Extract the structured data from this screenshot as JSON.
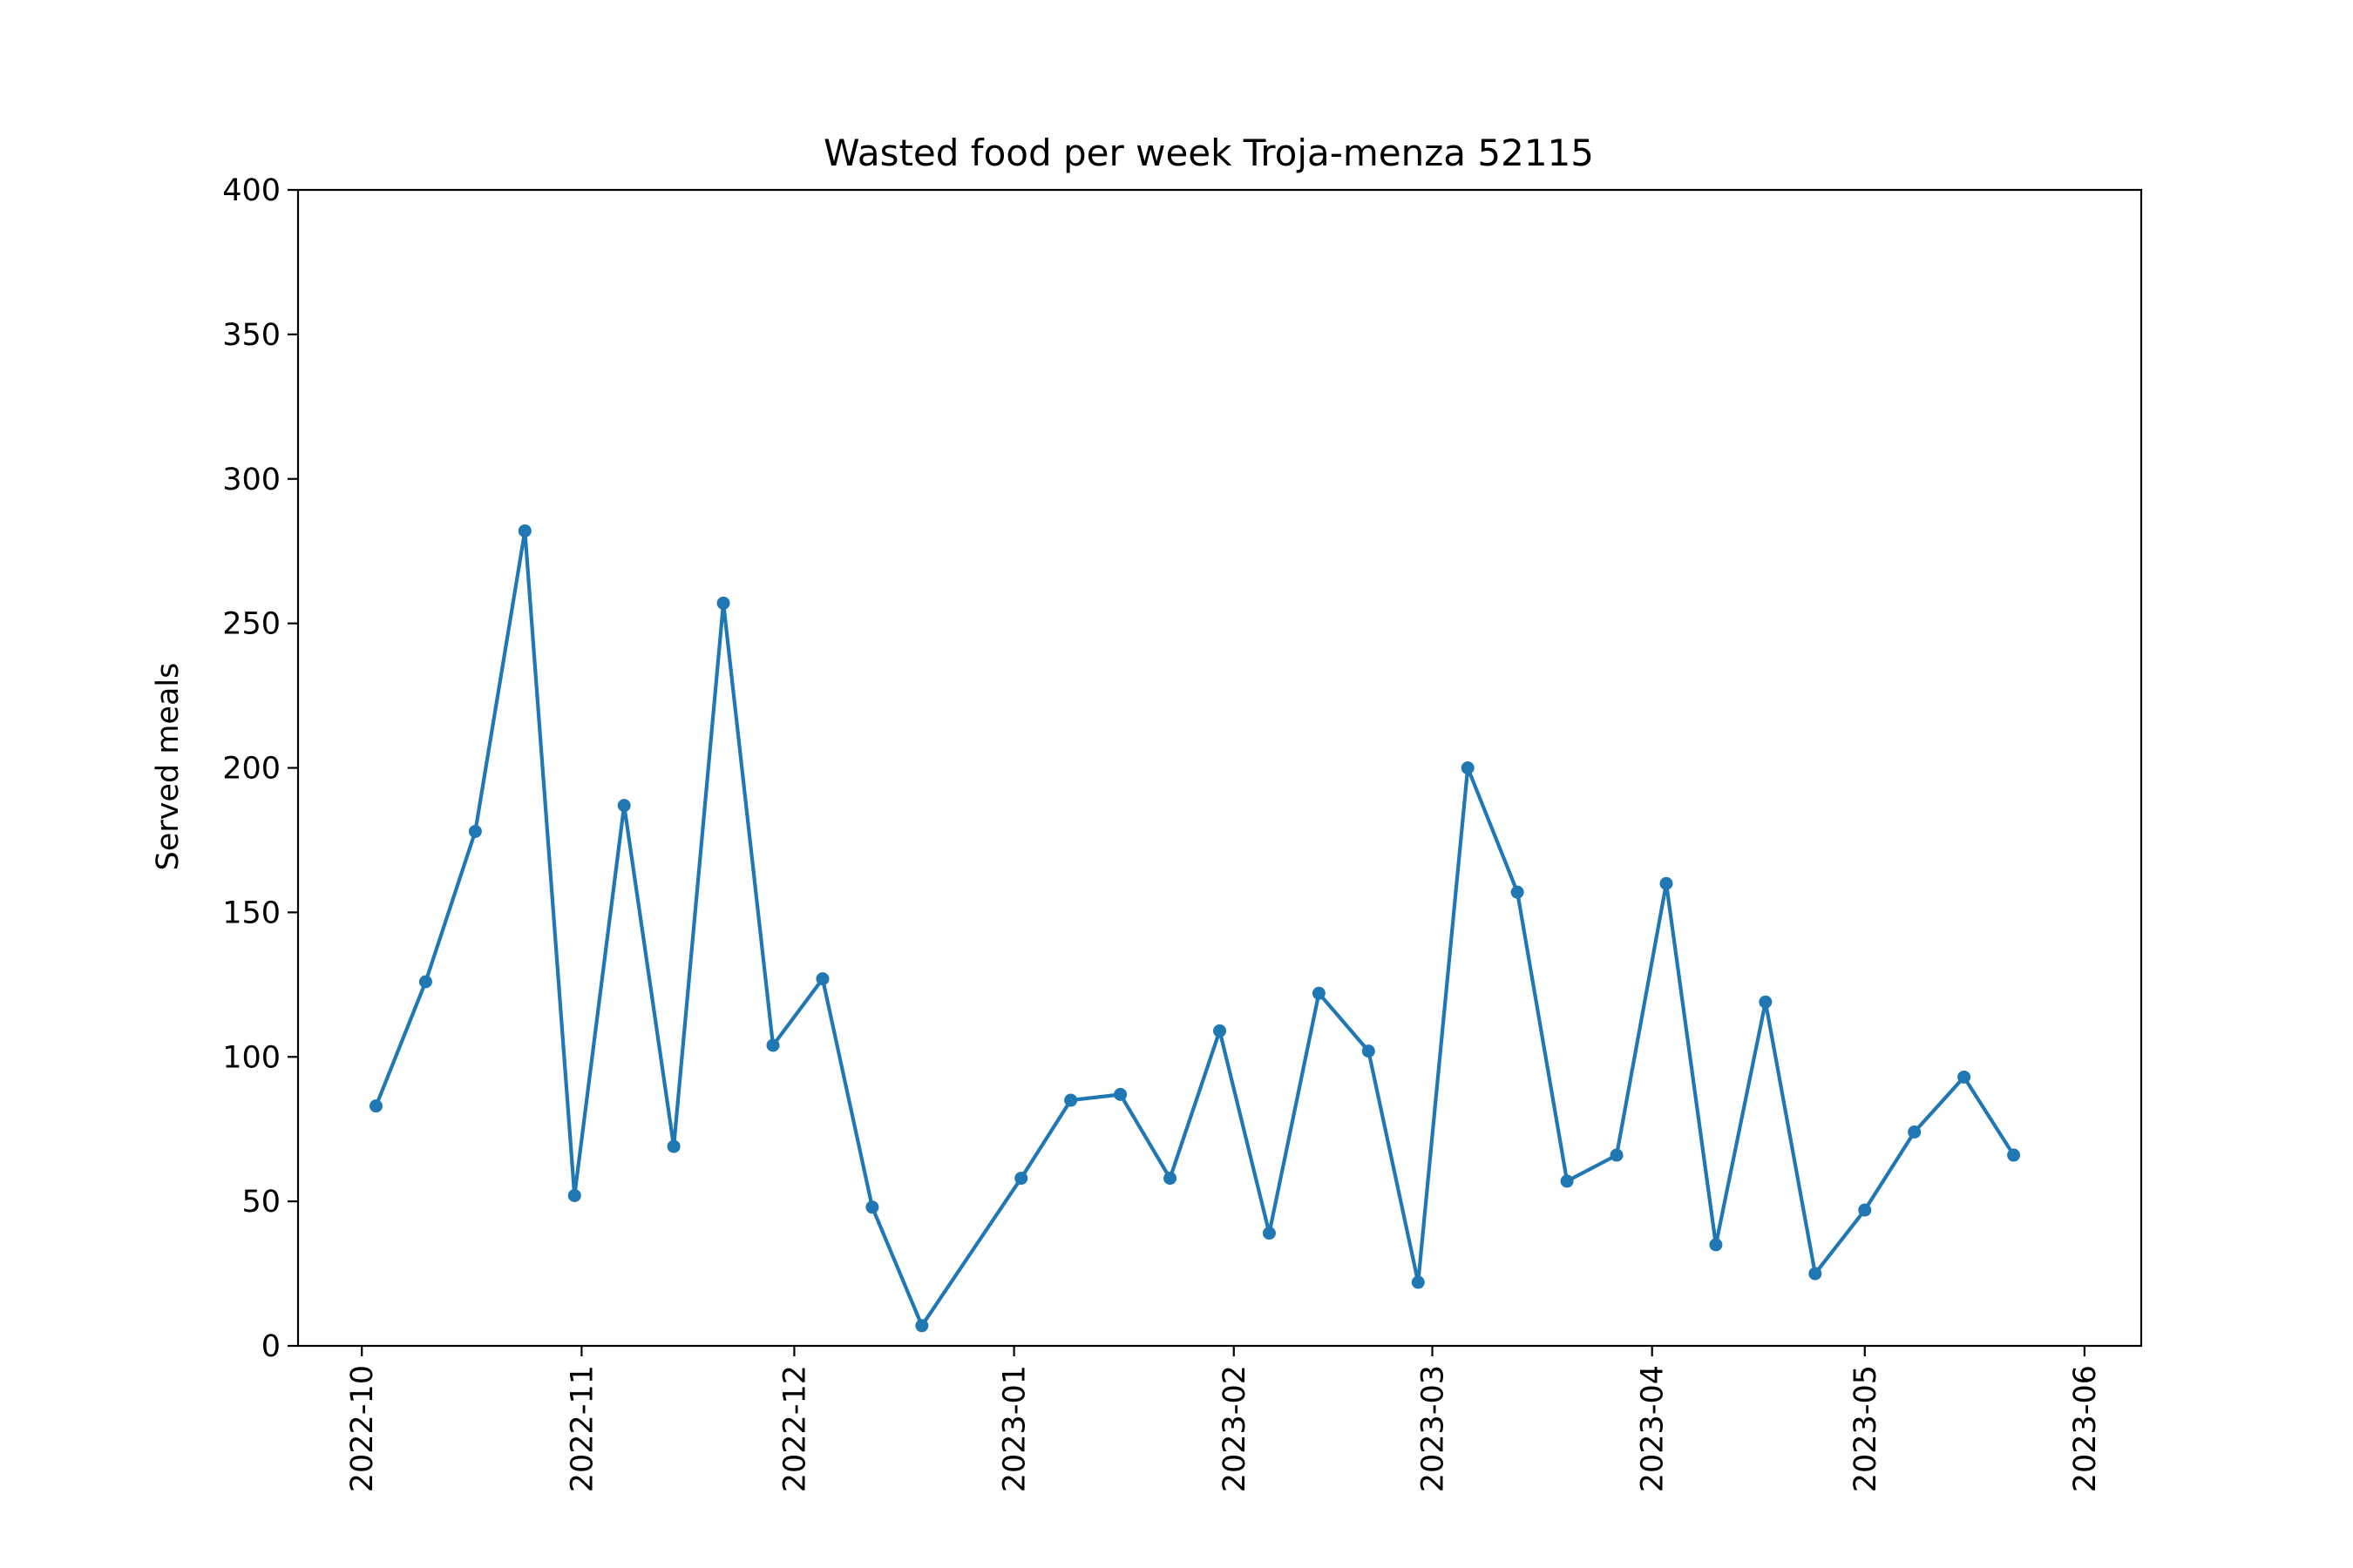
{
  "chart_data": {
    "type": "line",
    "title": "Wasted food per week Troja-menza 52115",
    "xlabel": "",
    "ylabel": "Served meals",
    "x_tick_labels": [
      "2022-10",
      "2022-11",
      "2022-12",
      "2023-01",
      "2023-02",
      "2023-03",
      "2023-04",
      "2023-05",
      "2023-06"
    ],
    "y_tick_labels": [
      "0",
      "50",
      "100",
      "150",
      "200",
      "250",
      "300",
      "350",
      "400"
    ],
    "ylim": [
      0,
      400
    ],
    "xlim": [
      "2022-09-22",
      "2023-06-09"
    ],
    "grid": false,
    "line_color": "#1f77b4",
    "series": [
      {
        "x": [
          "2022-10-03",
          "2022-10-10",
          "2022-10-17",
          "2022-10-24",
          "2022-10-31",
          "2022-11-07",
          "2022-11-14",
          "2022-11-21",
          "2022-11-28",
          "2022-12-05",
          "2022-12-12",
          "2022-12-19",
          "2023-01-02",
          "2023-01-09",
          "2023-01-16",
          "2023-01-23",
          "2023-01-30",
          "2023-02-06",
          "2023-02-13",
          "2023-02-20",
          "2023-02-27",
          "2023-03-06",
          "2023-03-13",
          "2023-03-20",
          "2023-03-27",
          "2023-04-03",
          "2023-04-10",
          "2023-04-17",
          "2023-04-24",
          "2023-05-01",
          "2023-05-08",
          "2023-05-15",
          "2023-05-22"
        ],
        "values": [
          83,
          126,
          178,
          282,
          52,
          187,
          69,
          257,
          104,
          127,
          48,
          7,
          58,
          85,
          87,
          58,
          109,
          39,
          122,
          102,
          22,
          200,
          157,
          57,
          66,
          160,
          35,
          119,
          25,
          47,
          74,
          93,
          66
        ]
      }
    ]
  }
}
